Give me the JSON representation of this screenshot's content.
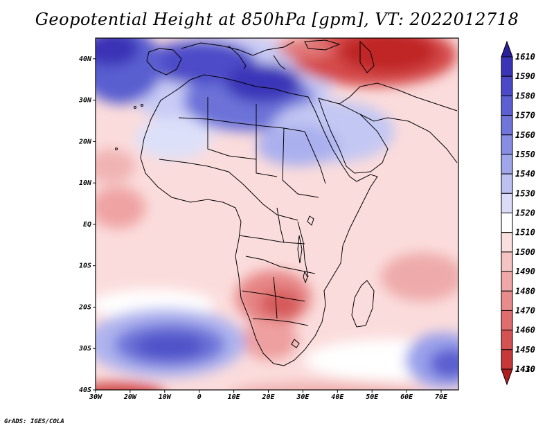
{
  "title": "Geopotential Height at 850hPa [gpm], VT: 2022012718",
  "credit": "GrADS: IGES/COLA",
  "map": {
    "lon_range": [
      -30,
      75
    ],
    "lat_range": [
      -40,
      45
    ],
    "x_ticks": [
      "30W",
      "20W",
      "10W",
      "0",
      "10E",
      "20E",
      "30E",
      "40E",
      "50E",
      "60E",
      "70E"
    ],
    "y_ticks": [
      "40N",
      "30N",
      "20N",
      "10N",
      "EQ",
      "10S",
      "20S",
      "30S",
      "40S"
    ]
  },
  "colorbar": {
    "levels": [
      "1610",
      "1590",
      "1580",
      "1570",
      "1560",
      "1550",
      "1540",
      "1530",
      "1520",
      "1510",
      "1500",
      "1490",
      "1480",
      "1470",
      "1460",
      "1450",
      "1430",
      "1410"
    ],
    "colors": [
      "#2b1f9a",
      "#3b33b8",
      "#4b49c8",
      "#5c5fd2",
      "#7075da",
      "#878ee2",
      "#a0a6ea",
      "#bcc1f2",
      "#dadcf8",
      "#ffffff",
      "#fbdede",
      "#f6c3c3",
      "#efa7a7",
      "#e88b8b",
      "#df6d6d",
      "#d45252",
      "#c73838",
      "#b01d1d"
    ]
  }
}
